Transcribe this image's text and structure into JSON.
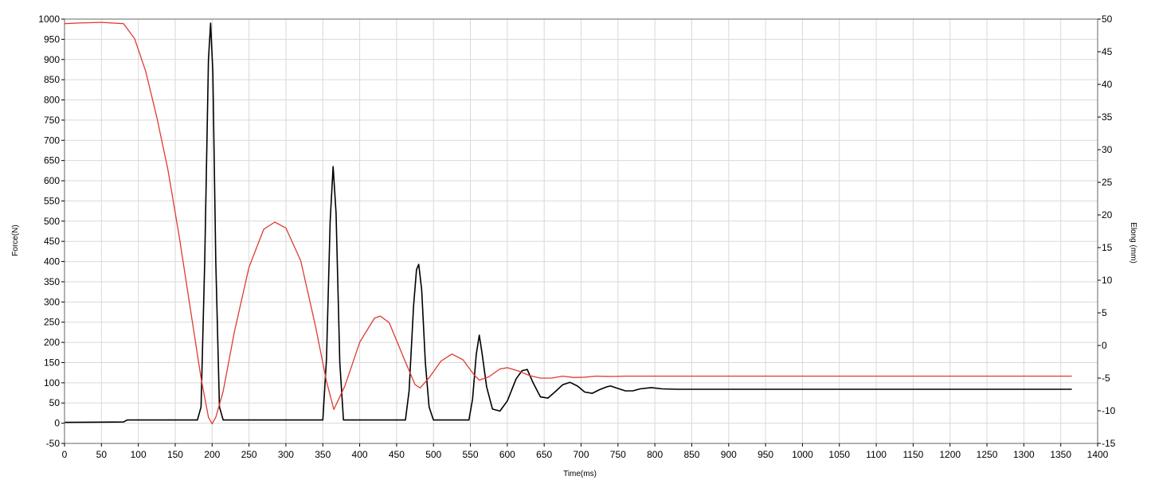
{
  "chart_data": {
    "type": "line",
    "title": "",
    "xlabel": "Time(ms)",
    "ylabel": "Force(N)",
    "y2label": "Elong (mm)",
    "grid": true,
    "legend": "none",
    "xlim": [
      0,
      1400
    ],
    "ylim": [
      -50,
      1000
    ],
    "y2lim": [
      -15,
      50
    ],
    "x_ticks": [
      0,
      50,
      100,
      150,
      200,
      250,
      300,
      350,
      400,
      450,
      500,
      550,
      600,
      650,
      700,
      750,
      800,
      850,
      900,
      950,
      1000,
      1050,
      1100,
      1150,
      1200,
      1250,
      1300,
      1350,
      1400
    ],
    "y_ticks": [
      -50,
      0,
      50,
      100,
      150,
      200,
      250,
      300,
      350,
      400,
      450,
      500,
      550,
      600,
      650,
      700,
      750,
      800,
      850,
      900,
      950,
      1000
    ],
    "y2_ticks": [
      -15,
      -10,
      -5,
      0,
      5,
      10,
      15,
      20,
      25,
      30,
      35,
      40,
      45,
      50
    ],
    "series": [
      {
        "axis": "left",
        "color": "#000000",
        "x": [
          0,
          80,
          85,
          180,
          185,
          190,
          195,
          198,
          201,
          205,
          210,
          215,
          350,
          355,
          360,
          364,
          368,
          373,
          378,
          462,
          467,
          473,
          477,
          480,
          484,
          489,
          494,
          500,
          548,
          553,
          558,
          562,
          566,
          572,
          580,
          590,
          600,
          612,
          620,
          627,
          635,
          645,
          655,
          665,
          675,
          685,
          695,
          705,
          715,
          725,
          735,
          740,
          750,
          760,
          770,
          780,
          795,
          810,
          830,
          860,
          900,
          1000,
          1100,
          1200,
          1300,
          1365
        ],
        "y": [
          2,
          3,
          8,
          8,
          40,
          400,
          900,
          990,
          870,
          400,
          40,
          8,
          8,
          160,
          500,
          635,
          520,
          150,
          8,
          8,
          80,
          290,
          380,
          393,
          330,
          150,
          40,
          8,
          8,
          60,
          170,
          218,
          170,
          90,
          35,
          30,
          55,
          110,
          130,
          133,
          100,
          65,
          62,
          78,
          95,
          101,
          92,
          77,
          74,
          83,
          90,
          92,
          86,
          80,
          80,
          85,
          88,
          85,
          84,
          84,
          84,
          84,
          84,
          84,
          84,
          84
        ]
      },
      {
        "axis": "right",
        "color": "#e03a32",
        "x": [
          0,
          20,
          50,
          80,
          95,
          110,
          125,
          140,
          155,
          170,
          185,
          195,
          200,
          205,
          215,
          230,
          250,
          270,
          285,
          300,
          320,
          340,
          355,
          365,
          380,
          400,
          420,
          428,
          440,
          460,
          475,
          482,
          495,
          510,
          525,
          540,
          555,
          562,
          575,
          590,
          600,
          615,
          630,
          645,
          660,
          675,
          690,
          705,
          720,
          740,
          760,
          800,
          900,
          1000,
          1100,
          1200,
          1300,
          1365
        ],
        "y": [
          49.3,
          49.4,
          49.5,
          49.3,
          47,
          42,
          35,
          27,
          17,
          6,
          -5,
          -11,
          -12,
          -11,
          -7,
          2,
          12,
          17.8,
          18.9,
          18,
          13,
          3,
          -5.5,
          -9.8,
          -6.2,
          0.5,
          4.2,
          4.5,
          3.5,
          -2,
          -6,
          -6.5,
          -4.8,
          -2.4,
          -1.3,
          -2.2,
          -4.5,
          -5.3,
          -4.8,
          -3.6,
          -3.4,
          -3.9,
          -4.6,
          -5,
          -5,
          -4.7,
          -4.9,
          -4.85,
          -4.7,
          -4.75,
          -4.7,
          -4.7,
          -4.7,
          -4.7,
          -4.7,
          -4.7,
          -4.7,
          -4.7
        ]
      }
    ]
  }
}
